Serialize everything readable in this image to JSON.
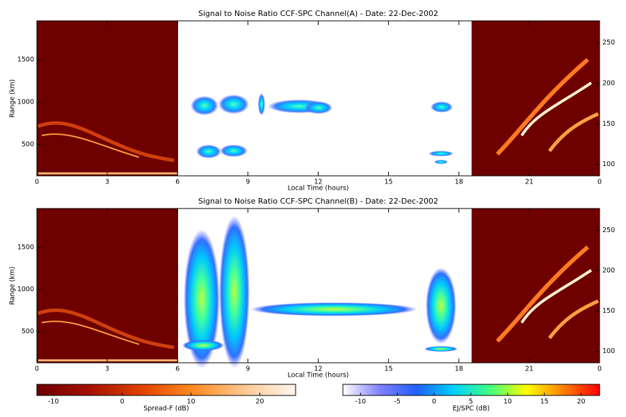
{
  "chart_data": [
    {
      "type": "heatmap",
      "title": "Signal to Noise Ratio CCF-SPC Channel(A) - Date: 22-Dec-2002",
      "x_label": "Local Time (hours)",
      "y_label": "Range (km)",
      "xlim": [
        0,
        24
      ],
      "xticks": [
        0,
        3,
        6,
        9,
        12,
        15,
        18,
        21,
        {
          "value": 24,
          "label": "0"
        }
      ],
      "ylim": [
        130,
        1960
      ],
      "yticks": [
        500,
        1000,
        1500
      ],
      "y2lim": [
        86,
        277
      ],
      "y2ticks": [
        100,
        150,
        200,
        250
      ]
    },
    {
      "type": "heatmap",
      "title": "Signal to Noise Ratio CCF-SPC Channel(B) - Date: 22-Dec-2002",
      "x_label": "Local Time (hours)",
      "y_label": "Range (km)",
      "xlim": [
        0,
        24
      ],
      "xticks": [
        0,
        3,
        6,
        9,
        12,
        15,
        18,
        21,
        {
          "value": 24,
          "label": "0"
        }
      ],
      "ylim": [
        130,
        1960
      ],
      "yticks": [
        500,
        1000,
        1500
      ],
      "y2lim": [
        86,
        277
      ],
      "y2ticks": [
        100,
        150,
        200,
        250
      ]
    }
  ],
  "colorbars": [
    {
      "label": "Spread-F (dB)",
      "lim": [
        -12.4,
        25.2
      ],
      "ticks": [
        -10,
        0,
        10,
        20
      ],
      "colors": [
        "#6e0000",
        "#a31000",
        "#e04000",
        "#ff8a20",
        "#ffc890",
        "#fff8f0"
      ]
    },
    {
      "label": "EJ/SPC (dB)",
      "lim": [
        -12.4,
        22.5
      ],
      "ticks": [
        -10,
        -5,
        0,
        5,
        10,
        15,
        20
      ],
      "colors": [
        "#ffffff",
        "#8080ff",
        "#2060ff",
        "#00d0ff",
        "#40ff80",
        "#ffff00",
        "#ff8000",
        "#ff0000"
      ]
    }
  ]
}
